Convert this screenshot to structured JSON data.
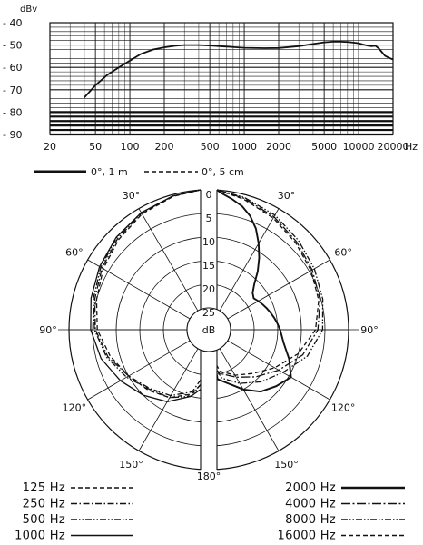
{
  "chart_data": [
    {
      "type": "line",
      "title": "",
      "ylabel": "dBv",
      "xlabel": "Hz",
      "x_scale": "log",
      "xlim": [
        20,
        20000
      ],
      "ylim": [
        -90,
        -40
      ],
      "grid": true,
      "x_tick_labels": [
        "20",
        "50",
        "100",
        "200",
        "500",
        "1000",
        "2000",
        "5000",
        "10000",
        "20000"
      ],
      "y_tick_labels": [
        "- 40",
        "- 50",
        "- 60",
        "- 70",
        "- 80",
        "- 90"
      ],
      "x_ticks": [
        20,
        50,
        100,
        200,
        500,
        1000,
        2000,
        5000,
        10000,
        20000
      ],
      "y_ticks": [
        -40,
        -50,
        -60,
        -70,
        -80,
        -90
      ],
      "legend": [
        {
          "label": "0°, 1 m",
          "style": "solid"
        },
        {
          "label": "0°, 5 cm",
          "style": "dashed"
        }
      ],
      "series": [
        {
          "style": "solid",
          "x": [
            40,
            50,
            63,
            80,
            100,
            125,
            160,
            200,
            250,
            300,
            400,
            500,
            700,
            1000,
            1500,
            2000,
            3000,
            4000,
            5000,
            6000,
            7000,
            8000,
            9000,
            10000,
            11000,
            12000,
            13000,
            14000,
            15000,
            16000,
            17000,
            18000,
            20000
          ],
          "y": [
            -73.5,
            -68,
            -63.5,
            -60,
            -57,
            -54,
            -52,
            -51,
            -50.3,
            -50,
            -50,
            -50.2,
            -50.7,
            -51.2,
            -51.4,
            -51.3,
            -50.5,
            -49.5,
            -48.8,
            -48.5,
            -48.5,
            -48.6,
            -48.9,
            -49.2,
            -49.8,
            -50.3,
            -50.5,
            -50.3,
            -51.5,
            -53.2,
            -54.8,
            -55.5,
            -56.5
          ]
        }
      ]
    },
    {
      "type": "polar",
      "title": "",
      "center_label": "dB",
      "radial_range": [
        0,
        25
      ],
      "radial_tick_labels": [
        "0",
        "5",
        "10",
        "15",
        "20",
        "25"
      ],
      "radial_ticks": [
        0,
        5,
        10,
        15,
        20,
        25
      ],
      "angle_labels": [
        "0",
        "30°",
        "60°",
        "90°",
        "120°",
        "150°",
        "180°",
        "30°",
        "60°",
        "90°",
        "120°",
        "150°"
      ],
      "angles": [
        0,
        30,
        60,
        90,
        120,
        150,
        180,
        -30,
        -60,
        -90,
        -120,
        -150
      ],
      "left_half": {
        "series": [
          {
            "name": "125 Hz",
            "style": "dash",
            "angle": [
              0,
              15,
              30,
              45,
              60,
              75,
              90,
              105,
              120,
              135,
              150,
              165,
              180
            ],
            "dB": [
              0,
              0.4,
              1.3,
              2.6,
              3.8,
              5.0,
              6.0,
              8.0,
              10.0,
              11.5,
              13.0,
              15.5,
              18.0
            ]
          },
          {
            "name": "250 Hz",
            "style": "dashdot",
            "angle": [
              0,
              15,
              30,
              45,
              60,
              75,
              90,
              105,
              120,
              135,
              150,
              165,
              180
            ],
            "dB": [
              0,
              0.3,
              1.1,
              2.3,
              3.5,
              4.6,
              5.6,
              7.5,
              10.0,
              12.0,
              13.5,
              16.0,
              19.0
            ]
          },
          {
            "name": "500 Hz",
            "style": "dashdotdot",
            "angle": [
              0,
              15,
              30,
              45,
              60,
              75,
              90,
              105,
              120,
              135,
              150,
              165,
              180
            ],
            "dB": [
              0,
              0.3,
              1.0,
              2.0,
              3.2,
              4.3,
              5.4,
              7.2,
              9.5,
              11.8,
              13.0,
              15.0,
              18.0
            ]
          },
          {
            "name": "1000 Hz",
            "style": "solid",
            "angle": [
              0,
              15,
              30,
              45,
              60,
              75,
              90,
              105,
              120,
              135,
              150,
              165,
              180
            ],
            "dB": [
              0,
              0.3,
              1.0,
              1.9,
              2.9,
              3.8,
              4.6,
              6.0,
              8.0,
              10.0,
              12.0,
              15.0,
              17.0
            ]
          }
        ]
      },
      "right_half": {
        "series": [
          {
            "name": "2000 Hz",
            "style": "thick",
            "angle": [
              0,
              5,
              10,
              15,
              20,
              25,
              30,
              35,
              40,
              45,
              50,
              55,
              60,
              65,
              70,
              75,
              80,
              85,
              90,
              100,
              110,
              120,
              130,
              140,
              150,
              160,
              170,
              180
            ],
            "dB": [
              0,
              0.5,
              1.5,
              2.5,
              4.0,
              6.0,
              8.5,
              11.0,
              13.5,
              16.0,
              17.5,
              18.0,
              17.5,
              17.0,
              16.5,
              16.0,
              15.5,
              15.0,
              14.5,
              13.5,
              11.5,
              9.5,
              11.0,
              12.5,
              15.0,
              17.5,
              19.0,
              20.0
            ]
          },
          {
            "name": "4000 Hz",
            "style": "longdashdot",
            "angle": [
              0,
              15,
              30,
              45,
              60,
              75,
              90,
              105,
              120,
              135,
              150,
              165,
              180
            ],
            "dB": [
              0,
              0.8,
              2.0,
              3.3,
              4.3,
              5.2,
              6.5,
              9.0,
              12.5,
              15.5,
              18.0,
              20.0,
              21.0
            ]
          },
          {
            "name": "8000 Hz",
            "style": "dashdotdot",
            "angle": [
              0,
              15,
              30,
              45,
              60,
              75,
              90,
              105,
              120,
              135,
              150,
              165,
              180
            ],
            "dB": [
              0,
              0.6,
              1.6,
              2.8,
              3.8,
              4.6,
              5.5,
              8.0,
              11.5,
              14.0,
              16.5,
              19.0,
              21.0
            ]
          },
          {
            "name": "16000 Hz",
            "style": "dash",
            "angle": [
              0,
              15,
              30,
              45,
              60,
              75,
              90,
              105,
              120,
              135,
              150,
              165,
              180
            ],
            "dB": [
              0,
              1.0,
              2.3,
              3.6,
              4.6,
              5.5,
              7.0,
              10.0,
              13.5,
              16.5,
              18.5,
              20.5,
              22.0
            ]
          }
        ]
      }
    }
  ]
}
